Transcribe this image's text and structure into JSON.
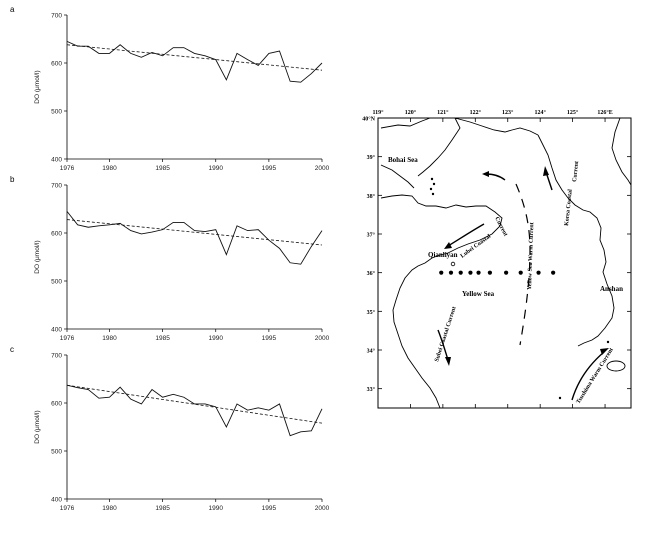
{
  "chart_data": [
    {
      "type": "line",
      "panel_label": "a",
      "ylabel": "DO (μmol/l)",
      "xlim": [
        1976,
        2000
      ],
      "ylim": [
        400,
        700
      ],
      "xticks": [
        "1976",
        "1980",
        "1985",
        "1990",
        "1995",
        "2000"
      ],
      "yticks": [
        "400",
        "500",
        "600",
        "700"
      ],
      "grid": false,
      "series": [
        {
          "style": "solid",
          "x": [
            1976,
            1977,
            1978,
            1979,
            1980,
            1981,
            1982,
            1983,
            1984,
            1985,
            1986,
            1987,
            1988,
            1989,
            1990,
            1991,
            1992,
            1993,
            1994,
            1995,
            1996,
            1997,
            1998,
            1999,
            2000
          ],
          "values": [
            645,
            635,
            635,
            620,
            620,
            638,
            620,
            612,
            622,
            615,
            632,
            632,
            620,
            615,
            607,
            565,
            620,
            607,
            595,
            620,
            625,
            562,
            560,
            578,
            600
          ]
        },
        {
          "style": "dashed",
          "x": [
            1976,
            2000
          ],
          "values": [
            638,
            585
          ]
        }
      ]
    },
    {
      "type": "line",
      "panel_label": "b",
      "ylabel": "DO (μmol/l)",
      "xlim": [
        1976,
        2000
      ],
      "ylim": [
        400,
        700
      ],
      "xticks": [
        "1976",
        "1980",
        "1985",
        "1990",
        "1995",
        "2000"
      ],
      "yticks": [
        "400",
        "500",
        "600",
        "700"
      ],
      "grid": false,
      "series": [
        {
          "style": "solid",
          "x": [
            1976,
            1977,
            1978,
            1979,
            1980,
            1981,
            1982,
            1983,
            1984,
            1985,
            1986,
            1987,
            1988,
            1989,
            1990,
            1991,
            1992,
            1993,
            1994,
            1995,
            1996,
            1997,
            1998,
            1999,
            2000
          ],
          "values": [
            645,
            617,
            612,
            615,
            617,
            620,
            605,
            598,
            602,
            607,
            622,
            622,
            605,
            603,
            607,
            555,
            615,
            605,
            607,
            585,
            568,
            538,
            535,
            572,
            605
          ]
        },
        {
          "style": "dashed",
          "x": [
            1976,
            2000
          ],
          "values": [
            628,
            575
          ]
        }
      ]
    },
    {
      "type": "line",
      "panel_label": "c",
      "ylabel": "DO (μmol/l)",
      "xlim": [
        1976,
        2000
      ],
      "ylim": [
        400,
        700
      ],
      "xticks": [
        "1976",
        "1980",
        "1985",
        "1990",
        "1995",
        "2000"
      ],
      "yticks": [
        "400",
        "500",
        "600",
        "700"
      ],
      "grid": false,
      "series": [
        {
          "style": "solid",
          "x": [
            1976,
            1977,
            1978,
            1979,
            1980,
            1981,
            1982,
            1983,
            1984,
            1985,
            1986,
            1987,
            1988,
            1989,
            1990,
            1991,
            1992,
            1993,
            1994,
            1995,
            1996,
            1997,
            1998,
            1999,
            2000
          ],
          "values": [
            637,
            632,
            628,
            610,
            612,
            633,
            608,
            598,
            628,
            612,
            618,
            612,
            598,
            598,
            592,
            550,
            598,
            585,
            590,
            585,
            598,
            532,
            540,
            542,
            588
          ]
        },
        {
          "style": "dashed",
          "x": [
            1976,
            2000
          ],
          "values": [
            637,
            558
          ]
        }
      ]
    }
  ],
  "map": {
    "lon_ticks": [
      "119°",
      "120°",
      "121°",
      "122°",
      "123°",
      "124°",
      "125°",
      "126°E"
    ],
    "lat_ticks": [
      "40°N",
      "39°",
      "38°",
      "37°",
      "36°",
      "35°",
      "34°",
      "33°"
    ],
    "labels": {
      "bohai": "Bohai Sea",
      "yellow": "Yellow Sea",
      "qianliyan": "Qianliyan",
      "lubei": "Lubei Coastal",
      "current_small": "Current",
      "korea": "Korea Coastal",
      "korea_current": "Current",
      "ysw": "Yellow Sea Warm Current",
      "subei": "Subei Coastal Current",
      "anshan": "Anshan",
      "tsushima": "Tsushima Warm Current"
    },
    "stations_lat": 36,
    "stations_lon": [
      120.95,
      121.25,
      121.55,
      121.85,
      122.1,
      122.45,
      122.95,
      123.4,
      123.95,
      124.4
    ]
  }
}
